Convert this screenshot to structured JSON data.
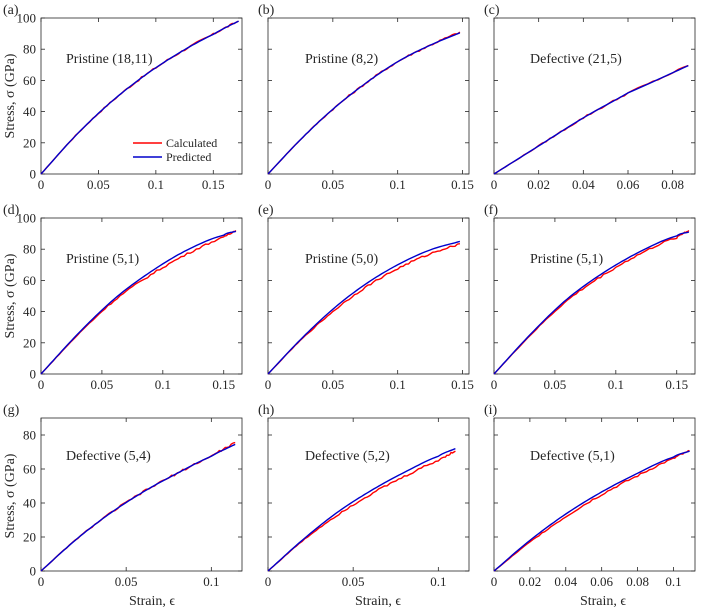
{
  "figure": {
    "xlabel": "Strain, ϵ",
    "ylabel": "Stress, σ (GPa)",
    "legend": {
      "position": "lower-right of panel (a)",
      "entries": [
        "Calculated",
        "Predicted"
      ]
    },
    "colors": {
      "calculated": "#ff0000",
      "predicted": "#0000cc",
      "axis": "#262626"
    }
  },
  "chart_data": [
    {
      "panel": "(a)",
      "label": "Pristine (18,11)",
      "type": "line",
      "xlim": [
        0,
        0.175
      ],
      "ylim": [
        0,
        100
      ],
      "xticks": [
        0,
        0.05,
        0.1,
        0.15
      ],
      "xtick_labels": [
        "0",
        "0.05",
        "0.1",
        "0.15"
      ],
      "yticks": [
        0,
        20,
        40,
        60,
        80,
        100
      ],
      "ytick_labels": [
        "0",
        "20",
        "40",
        "60",
        "80",
        "100"
      ],
      "series": [
        {
          "name": "Calculated",
          "x": [
            0,
            0.03,
            0.06,
            0.09,
            0.12,
            0.15,
            0.172
          ],
          "y": [
            0,
            24.5,
            45.5,
            63,
            77.5,
            89.5,
            98
          ]
        },
        {
          "name": "Predicted",
          "x": [
            0,
            0.03,
            0.06,
            0.09,
            0.12,
            0.15,
            0.172
          ],
          "y": [
            0,
            24.5,
            45.5,
            63,
            77.5,
            89.5,
            98
          ]
        }
      ]
    },
    {
      "panel": "(b)",
      "label": "Pristine (8,2)",
      "type": "line",
      "xlim": [
        0,
        0.155
      ],
      "ylim": [
        0,
        100
      ],
      "xticks": [
        0,
        0.05,
        0.1,
        0.15
      ],
      "xtick_labels": [
        "0",
        "0.05",
        "0.1",
        "0.15"
      ],
      "yticks": [
        0,
        20,
        40,
        60,
        80,
        100
      ],
      "ytick_labels": [],
      "series": [
        {
          "name": "Calculated",
          "x": [
            0,
            0.025,
            0.05,
            0.075,
            0.1,
            0.125,
            0.148
          ],
          "y": [
            0,
            22,
            41.5,
            58,
            72,
            82.5,
            91
          ]
        },
        {
          "name": "Predicted",
          "x": [
            0,
            0.025,
            0.05,
            0.075,
            0.1,
            0.125,
            0.148
          ],
          "y": [
            0,
            22,
            41.5,
            58,
            72,
            82.5,
            90.5
          ]
        }
      ]
    },
    {
      "panel": "(c)",
      "label": "Defective (21,5)",
      "type": "line",
      "xlim": [
        0,
        0.09
      ],
      "ylim": [
        0,
        100
      ],
      "xticks": [
        0,
        0.02,
        0.04,
        0.06,
        0.08
      ],
      "xtick_labels": [
        "0",
        "0.02",
        "0.04",
        "0.06",
        "0.08"
      ],
      "yticks": [
        0,
        20,
        40,
        60,
        80,
        100
      ],
      "ytick_labels": [],
      "series": [
        {
          "name": "Calculated",
          "x": [
            0,
            0.02,
            0.04,
            0.06,
            0.087
          ],
          "y": [
            0,
            18,
            36,
            52,
            69.5
          ]
        },
        {
          "name": "Predicted",
          "x": [
            0,
            0.02,
            0.04,
            0.06,
            0.087
          ],
          "y": [
            0,
            18,
            36,
            52,
            69.5
          ]
        }
      ]
    },
    {
      "panel": "(d)",
      "label": "Pristine (5,1)",
      "type": "line",
      "xlim": [
        0,
        0.165
      ],
      "ylim": [
        0,
        100
      ],
      "xticks": [
        0,
        0.05,
        0.1,
        0.15
      ],
      "xtick_labels": [
        "0",
        "0.05",
        "0.1",
        "0.15"
      ],
      "yticks": [
        0,
        20,
        40,
        60,
        80,
        100
      ],
      "ytick_labels": [
        "0",
        "20",
        "40",
        "60",
        "80",
        "100"
      ],
      "series": [
        {
          "name": "Calculated",
          "x": [
            0,
            0.03,
            0.06,
            0.09,
            0.12,
            0.15,
            0.16
          ],
          "y": [
            0,
            25,
            47,
            63.5,
            77,
            87.5,
            92
          ]
        },
        {
          "name": "Predicted",
          "x": [
            0,
            0.03,
            0.06,
            0.09,
            0.12,
            0.15,
            0.16
          ],
          "y": [
            0,
            25.5,
            48,
            65.5,
            79.5,
            89,
            91.5
          ]
        }
      ]
    },
    {
      "panel": "(e)",
      "label": "Pristine (5,0)",
      "type": "line",
      "xlim": [
        0,
        0.155
      ],
      "ylim": [
        0,
        100
      ],
      "xticks": [
        0,
        0.05,
        0.1,
        0.15
      ],
      "xtick_labels": [
        "0",
        "0.05",
        "0.1",
        "0.15"
      ],
      "yticks": [
        0,
        20,
        40,
        60,
        80,
        100
      ],
      "ytick_labels": [],
      "series": [
        {
          "name": "Calculated",
          "x": [
            0,
            0.025,
            0.05,
            0.075,
            0.1,
            0.125,
            0.148
          ],
          "y": [
            0,
            21.5,
            40,
            55.5,
            67.5,
            77,
            83.5
          ]
        },
        {
          "name": "Predicted",
          "x": [
            0,
            0.025,
            0.05,
            0.075,
            0.1,
            0.125,
            0.148
          ],
          "y": [
            0,
            22,
            41.5,
            57.5,
            70,
            79.5,
            85
          ]
        }
      ]
    },
    {
      "panel": "(f)",
      "label": "Pristine (5,1)",
      "type": "line",
      "xlim": [
        0,
        0.165
      ],
      "ylim": [
        0,
        100
      ],
      "xticks": [
        0,
        0.05,
        0.1,
        0.15
      ],
      "xtick_labels": [
        "0",
        "0.05",
        "0.1",
        "0.15"
      ],
      "yticks": [
        0,
        20,
        40,
        60,
        80,
        100
      ],
      "ytick_labels": [],
      "series": [
        {
          "name": "Calculated",
          "x": [
            0,
            0.03,
            0.06,
            0.09,
            0.12,
            0.15,
            0.16
          ],
          "y": [
            0,
            25,
            47,
            63.5,
            77,
            87.5,
            92
          ]
        },
        {
          "name": "Predicted",
          "x": [
            0,
            0.03,
            0.06,
            0.09,
            0.12,
            0.15,
            0.16
          ],
          "y": [
            0,
            25.5,
            48,
            65,
            78.5,
            88.5,
            91
          ]
        }
      ]
    },
    {
      "panel": "(g)",
      "label": "Defective (5,4)",
      "type": "line",
      "xlim": [
        0,
        0.118
      ],
      "ylim": [
        0,
        90
      ],
      "xticks": [
        0,
        0.05,
        0.1
      ],
      "xtick_labels": [
        "0",
        "0.05",
        "0.1"
      ],
      "yticks": [
        0,
        20,
        40,
        60,
        80
      ],
      "ytick_labels": [
        "0",
        "20",
        "40",
        "60",
        "80"
      ],
      "series": [
        {
          "name": "Calculated",
          "x": [
            0,
            0.02,
            0.04,
            0.06,
            0.08,
            0.1,
            0.114
          ],
          "y": [
            0,
            18,
            33.5,
            46.5,
            57.5,
            67.5,
            75.5
          ]
        },
        {
          "name": "Predicted",
          "x": [
            0,
            0.02,
            0.04,
            0.06,
            0.08,
            0.1,
            0.114
          ],
          "y": [
            0,
            18,
            33.5,
            46.5,
            57.5,
            67.5,
            74.5
          ]
        }
      ]
    },
    {
      "panel": "(h)",
      "label": "Defective (5,2)",
      "type": "line",
      "xlim": [
        0,
        0.118
      ],
      "ylim": [
        0,
        90
      ],
      "xticks": [
        0,
        0.05,
        0.1
      ],
      "xtick_labels": [
        "0",
        "0.05",
        "0.1"
      ],
      "yticks": [
        0,
        20,
        40,
        60,
        80
      ],
      "ytick_labels": [],
      "series": [
        {
          "name": "Calculated",
          "x": [
            0,
            0.02,
            0.04,
            0.06,
            0.08,
            0.1,
            0.11
          ],
          "y": [
            0,
            17.5,
            32.5,
            45,
            55.5,
            65,
            70.5
          ]
        },
        {
          "name": "Predicted",
          "x": [
            0,
            0.02,
            0.04,
            0.06,
            0.08,
            0.1,
            0.11
          ],
          "y": [
            0,
            18,
            34,
            47,
            58,
            67.5,
            72
          ]
        }
      ]
    },
    {
      "panel": "(i)",
      "label": "Defective (5,1)",
      "type": "line",
      "xlim": [
        0,
        0.112
      ],
      "ylim": [
        0,
        90
      ],
      "xticks": [
        0,
        0.02,
        0.04,
        0.06,
        0.08,
        0.1
      ],
      "xtick_labels": [
        "0",
        "0.02",
        "0.04",
        "0.06",
        "0.08",
        "0.1"
      ],
      "yticks": [
        0,
        20,
        40,
        60,
        80
      ],
      "ytick_labels": [],
      "series": [
        {
          "name": "Calculated",
          "x": [
            0,
            0.02,
            0.04,
            0.06,
            0.08,
            0.1,
            0.109
          ],
          "y": [
            0,
            17,
            32,
            45,
            56,
            66,
            70.5
          ]
        },
        {
          "name": "Predicted",
          "x": [
            0,
            0.02,
            0.04,
            0.06,
            0.08,
            0.1,
            0.109
          ],
          "y": [
            0,
            18,
            33.5,
            46.5,
            57.5,
            67,
            70.5
          ]
        }
      ]
    }
  ]
}
